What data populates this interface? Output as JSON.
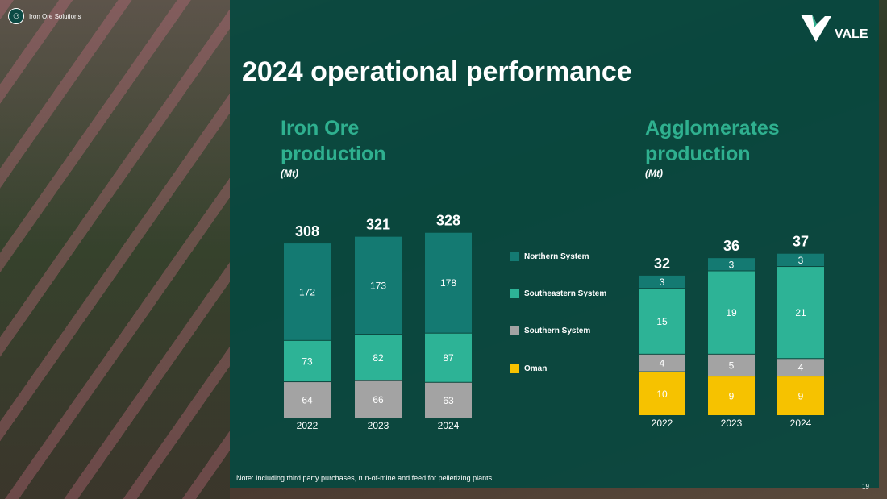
{
  "brand": {
    "label": "Iron Ore Solutions",
    "logo": "VALE"
  },
  "title": "2024 operational performance",
  "note": "Note: Including third party purchases, run-of-mine and feed for pelletizing plants.",
  "page_number": "19",
  "colors": {
    "Northern System": "#147a72",
    "Southeastern System": "#2db396",
    "Southern System": "#a3a3a3",
    "Oman": "#f6c200",
    "heading": "#2fb08f"
  },
  "legend": [
    "Northern System",
    "Southeastern System",
    "Southern System",
    "Oman"
  ],
  "chart_data": [
    {
      "type": "bar",
      "stacked": true,
      "title": "Iron Ore production",
      "unit": "(Mt)",
      "categories": [
        "2022",
        "2023",
        "2024"
      ],
      "totals": [
        308,
        321,
        328
      ],
      "series": [
        {
          "name": "Southern System",
          "values": [
            64,
            66,
            63
          ]
        },
        {
          "name": "Southeastern System",
          "values": [
            73,
            82,
            87
          ]
        },
        {
          "name": "Northern System",
          "values": [
            172,
            173,
            178
          ]
        }
      ]
    },
    {
      "type": "bar",
      "stacked": true,
      "title": "Agglomerates production",
      "unit": "(Mt)",
      "categories": [
        "2022",
        "2023",
        "2024"
      ],
      "totals": [
        32,
        36,
        37
      ],
      "series": [
        {
          "name": "Oman",
          "values": [
            10,
            9,
            9
          ]
        },
        {
          "name": "Southern System",
          "values": [
            4,
            5,
            4
          ]
        },
        {
          "name": "Southeastern System",
          "values": [
            15,
            19,
            21
          ]
        },
        {
          "name": "Northern System",
          "values": [
            3,
            3,
            3
          ]
        }
      ]
    }
  ]
}
